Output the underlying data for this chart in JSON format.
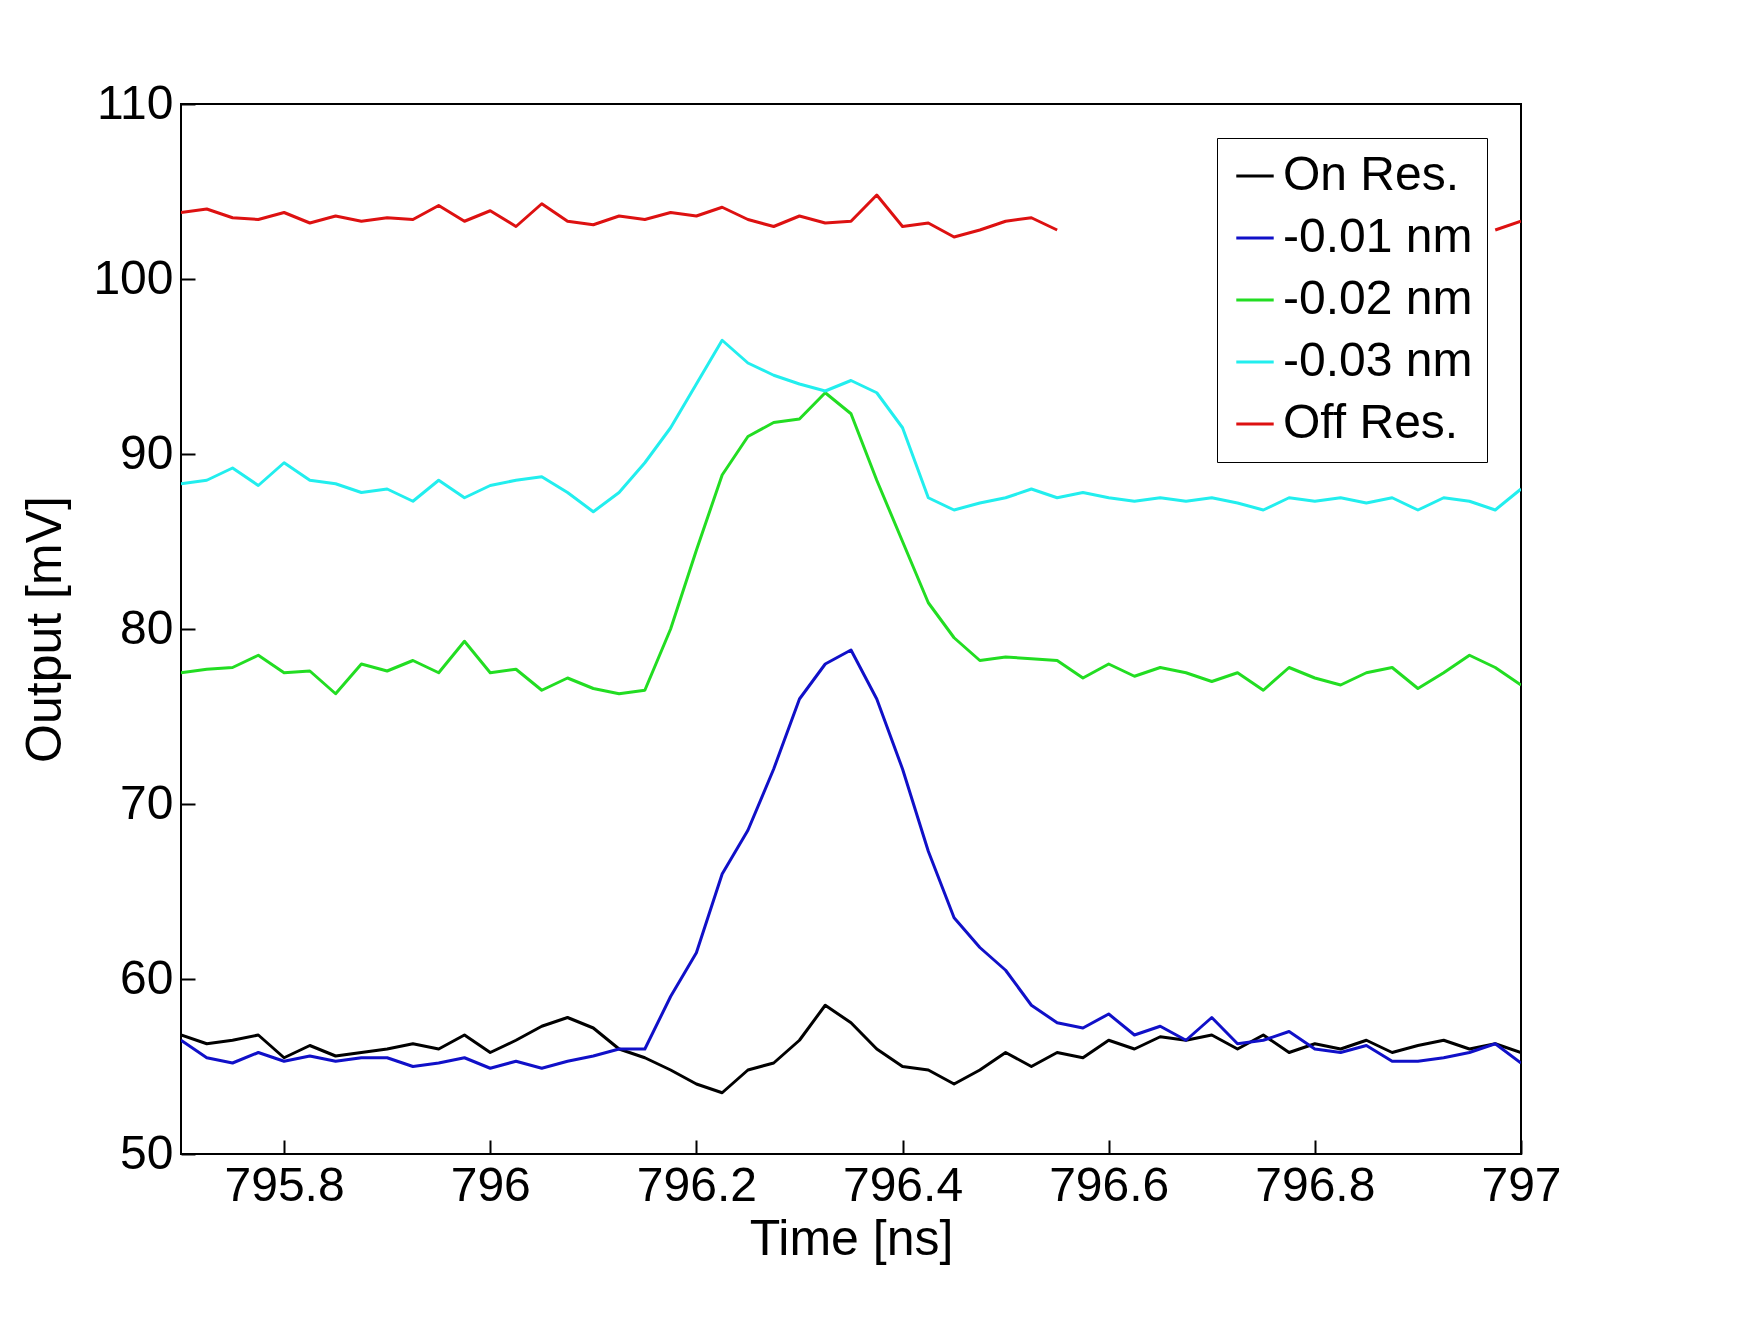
{
  "chart_data": {
    "type": "line",
    "xlabel": "Time [ns]",
    "ylabel": "Output [mV]",
    "x": [
      795.7,
      795.725,
      795.75,
      795.775,
      795.8,
      795.825,
      795.85,
      795.875,
      795.9,
      795.925,
      795.95,
      795.975,
      796,
      796.025,
      796.05,
      796.075,
      796.1,
      796.125,
      796.15,
      796.175,
      796.2,
      796.225,
      796.25,
      796.275,
      796.3,
      796.325,
      796.35,
      796.375,
      796.4,
      796.425,
      796.45,
      796.475,
      796.5,
      796.525,
      796.55,
      796.575,
      796.6,
      796.625,
      796.65,
      796.675,
      796.7,
      796.725,
      796.75,
      796.775,
      796.8,
      796.825,
      796.85,
      796.875,
      796.9,
      796.925,
      796.95,
      796.975,
      797
    ],
    "series": [
      {
        "name": "On Res.",
        "color": "#000000",
        "values": [
          56.8,
          56.3,
          56.5,
          56.8,
          55.5,
          56.2,
          55.6,
          55.8,
          56,
          56.3,
          56,
          56.8,
          55.8,
          56.5,
          57.3,
          57.8,
          57.2,
          56,
          55.5,
          54.8,
          54,
          53.5,
          54.8,
          55.2,
          56.5,
          58.5,
          57.5,
          56,
          55,
          54.8,
          54,
          54.8,
          55.8,
          55,
          55.8,
          55.5,
          56.5,
          56,
          56.7,
          56.5,
          56.8,
          56,
          56.8,
          55.8,
          56.3,
          56,
          56.5,
          55.8,
          56.2,
          56.5,
          56,
          56.3,
          55.8
        ]
      },
      {
        "name": "-0.01 nm",
        "color": "#1010c8",
        "values": [
          56.5,
          55.5,
          55.2,
          55.8,
          55.3,
          55.6,
          55.3,
          55.5,
          55.5,
          55,
          55.2,
          55.5,
          54.9,
          55.3,
          54.9,
          55.3,
          55.6,
          56,
          56,
          59,
          61.5,
          66,
          68.5,
          72,
          76,
          78,
          78.8,
          76,
          72,
          67.3,
          63.5,
          61.8,
          60.5,
          58.5,
          57.5,
          57.2,
          58,
          56.8,
          57.3,
          56.5,
          57.8,
          56.3,
          56.5,
          57,
          56,
          55.8,
          56.2,
          55.3,
          55.3,
          55.5,
          55.8,
          56.3,
          55.2
        ]
      },
      {
        "name": "-0.02 nm",
        "color": "#22dd22",
        "values": [
          77.5,
          77.7,
          77.8,
          78.5,
          77.5,
          77.6,
          76.3,
          78,
          77.6,
          78.2,
          77.5,
          79.3,
          77.5,
          77.7,
          76.5,
          77.2,
          76.6,
          76.3,
          76.5,
          80,
          84.5,
          88.8,
          91,
          91.8,
          92,
          93.5,
          92.3,
          88.5,
          85,
          81.5,
          79.5,
          78.2,
          78.4,
          78.3,
          78.2,
          77.2,
          78,
          77.3,
          77.8,
          77.5,
          77,
          77.5,
          76.5,
          77.8,
          77.2,
          76.8,
          77.5,
          77.8,
          76.6,
          77.5,
          78.5,
          77.8,
          76.8
        ]
      },
      {
        "name": "-0.03 nm",
        "color": "#22eeee",
        "values": [
          88.3,
          88.5,
          89.2,
          88.2,
          89.5,
          88.5,
          88.3,
          87.8,
          88,
          87.3,
          88.5,
          87.5,
          88.2,
          88.5,
          88.7,
          87.8,
          86.7,
          87.8,
          89.5,
          91.5,
          94,
          96.5,
          95.2,
          94.5,
          94,
          93.6,
          94.2,
          93.5,
          91.5,
          87.5,
          86.8,
          87.2,
          87.5,
          88,
          87.5,
          87.8,
          87.5,
          87.3,
          87.5,
          87.3,
          87.5,
          87.2,
          86.8,
          87.5,
          87.3,
          87.5,
          87.2,
          87.5,
          86.8,
          87.5,
          87.3,
          86.8,
          88
        ]
      },
      {
        "name": "Off Res.",
        "color": "#dd1111",
        "values": [
          103.8,
          104,
          103.5,
          103.4,
          103.8,
          103.2,
          103.6,
          103.3,
          103.5,
          103.4,
          104.2,
          103.3,
          103.9,
          103,
          104.3,
          103.3,
          103.1,
          103.6,
          103.4,
          103.8,
          103.6,
          104.1,
          103.4,
          103,
          103.6,
          103.2,
          103.3,
          104.8,
          103,
          103.2,
          102.4,
          102.8,
          103.3,
          103.5,
          102.8,
          null,
          null,
          null,
          null,
          null,
          null,
          null,
          null,
          null,
          null,
          null,
          null,
          null,
          null,
          null,
          null,
          102.8,
          103.3
        ]
      }
    ],
    "xlim": [
      795.7,
      797
    ],
    "xticks": [
      795.8,
      796,
      796.2,
      796.4,
      796.6,
      796.8,
      797
    ],
    "ylim": [
      50,
      110
    ],
    "yticks": [
      50,
      60,
      70,
      80,
      90,
      100,
      110
    ],
    "legend": "top right",
    "grid": false,
    "marker": "none",
    "line_style": "solid"
  }
}
